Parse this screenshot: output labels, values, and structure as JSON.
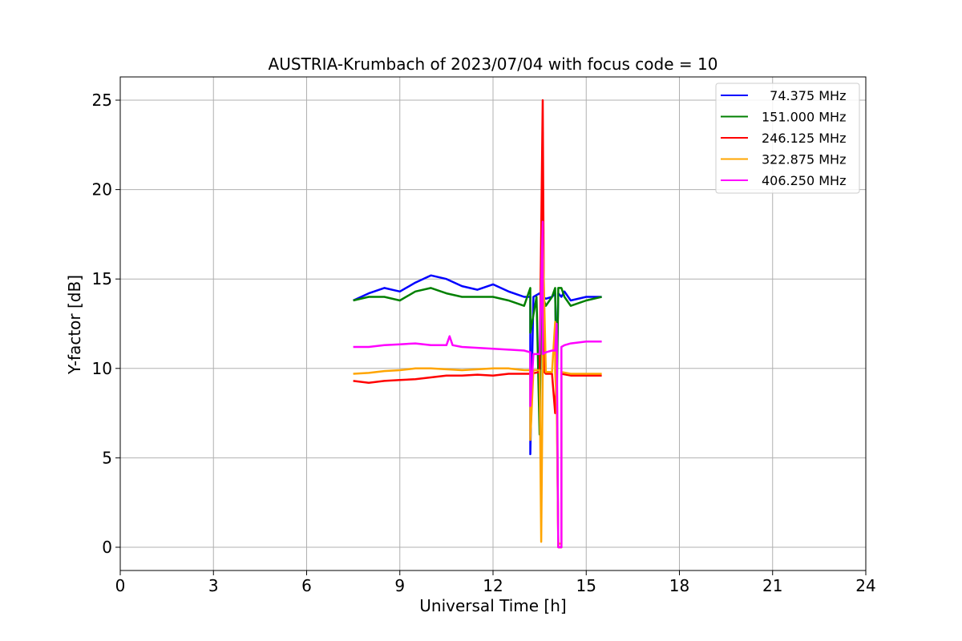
{
  "chart_data": {
    "type": "line",
    "title": "AUSTRIA-Krumbach of 2023/07/04 with focus code = 10",
    "xlabel": "Universal Time [h]",
    "ylabel": "Y-factor [dB]",
    "xlim": [
      0,
      24
    ],
    "ylim": [
      -1.3,
      26.3
    ],
    "xticks": [
      0,
      3,
      6,
      9,
      12,
      15,
      18,
      21,
      24
    ],
    "xtick_labels": [
      "0",
      "3",
      "6",
      "9",
      "12",
      "15",
      "18",
      "21",
      "24"
    ],
    "yticks": [
      0,
      5,
      10,
      15,
      20,
      25
    ],
    "ytick_labels": [
      "0",
      "5",
      "10",
      "15",
      "20",
      "25"
    ],
    "grid": true,
    "legend_position": "top-right",
    "series": [
      {
        "name": "  74.375 MHz",
        "color": "#0000ff",
        "x": [
          7.5,
          8.0,
          8.5,
          9.0,
          9.5,
          10.0,
          10.5,
          11.0,
          11.5,
          12.0,
          12.5,
          13.0,
          13.2,
          13.2,
          13.3,
          13.5,
          13.55,
          13.6,
          13.6,
          13.7,
          13.9,
          14.0,
          14.05,
          14.1,
          14.2,
          14.3,
          14.5,
          15.0,
          15.5
        ],
        "y": [
          13.8,
          14.2,
          14.5,
          14.3,
          14.8,
          15.2,
          15.0,
          14.6,
          14.4,
          14.7,
          14.3,
          14.0,
          14.0,
          5.2,
          14.0,
          14.2,
          14.0,
          23.2,
          14.0,
          13.9,
          14.0,
          14.2,
          9.5,
          14.2,
          14.0,
          14.3,
          13.8,
          14.0,
          14.0
        ]
      },
      {
        "name": "151.000 MHz",
        "color": "#008000",
        "x": [
          7.5,
          8.0,
          8.5,
          9.0,
          9.5,
          10.0,
          10.5,
          11.0,
          11.5,
          12.0,
          12.5,
          13.0,
          13.2,
          13.2,
          13.4,
          13.5,
          13.55,
          13.6,
          13.7,
          13.9,
          14.0,
          14.05,
          14.1,
          14.2,
          14.3,
          14.5,
          15.0,
          15.5
        ],
        "y": [
          13.8,
          14.0,
          14.0,
          13.8,
          14.3,
          14.5,
          14.2,
          14.0,
          14.0,
          14.0,
          13.8,
          13.5,
          14.5,
          12.0,
          14.0,
          6.3,
          14.0,
          14.0,
          13.5,
          14.0,
          14.5,
          8.0,
          14.5,
          14.5,
          14.0,
          13.5,
          13.8,
          14.0
        ]
      },
      {
        "name": "246.125 MHz",
        "color": "#ff0000",
        "x": [
          7.5,
          8.0,
          8.5,
          9.0,
          9.5,
          10.0,
          10.5,
          11.0,
          11.5,
          12.0,
          12.5,
          13.0,
          13.2,
          13.5,
          13.6,
          13.65,
          13.7,
          13.9,
          14.0,
          14.05,
          14.1,
          14.2,
          14.2,
          14.5,
          15.0,
          15.5
        ],
        "y": [
          9.3,
          9.2,
          9.3,
          9.35,
          9.4,
          9.5,
          9.6,
          9.6,
          9.65,
          9.6,
          9.7,
          9.7,
          9.7,
          9.8,
          25.0,
          9.8,
          9.7,
          9.7,
          7.5,
          9.7,
          0.0,
          0.0,
          9.7,
          9.6,
          9.6,
          9.6
        ]
      },
      {
        "name": "322.875 MHz",
        "color": "#ffa500",
        "x": [
          7.5,
          8.0,
          8.5,
          9.0,
          9.5,
          10.0,
          10.5,
          11.0,
          11.5,
          12.0,
          12.5,
          13.0,
          13.2,
          13.2,
          13.3,
          13.5,
          13.55,
          13.6,
          13.6,
          13.7,
          13.9,
          14.0,
          14.0,
          14.05,
          14.1,
          14.2,
          14.2,
          14.5,
          15.0,
          15.5
        ],
        "y": [
          9.7,
          9.75,
          9.85,
          9.9,
          10.0,
          10.0,
          9.95,
          9.9,
          9.95,
          10.0,
          10.0,
          9.9,
          9.9,
          6.0,
          9.9,
          9.9,
          0.3,
          9.9,
          17.5,
          9.8,
          9.8,
          12.6,
          9.8,
          8.0,
          0.2,
          0.2,
          9.8,
          9.7,
          9.7,
          9.7
        ]
      },
      {
        "name": "406.250 MHz",
        "color": "#ff00ff",
        "x": [
          7.5,
          8.0,
          8.5,
          9.0,
          9.5,
          10.0,
          10.5,
          10.6,
          10.7,
          11.0,
          11.5,
          12.0,
          12.5,
          13.0,
          13.2,
          13.2,
          13.3,
          13.5,
          13.6,
          13.6,
          13.7,
          13.9,
          14.0,
          14.05,
          14.1,
          14.2,
          14.2,
          14.3,
          14.5,
          15.0,
          15.5
        ],
        "y": [
          11.2,
          11.2,
          11.3,
          11.35,
          11.4,
          11.3,
          11.3,
          11.8,
          11.3,
          11.2,
          11.15,
          11.1,
          11.05,
          11.0,
          10.9,
          7.9,
          10.8,
          10.8,
          18.2,
          10.8,
          10.9,
          11.0,
          11.0,
          12.5,
          0.0,
          0.0,
          11.2,
          11.3,
          11.4,
          11.5,
          11.5
        ]
      }
    ]
  }
}
